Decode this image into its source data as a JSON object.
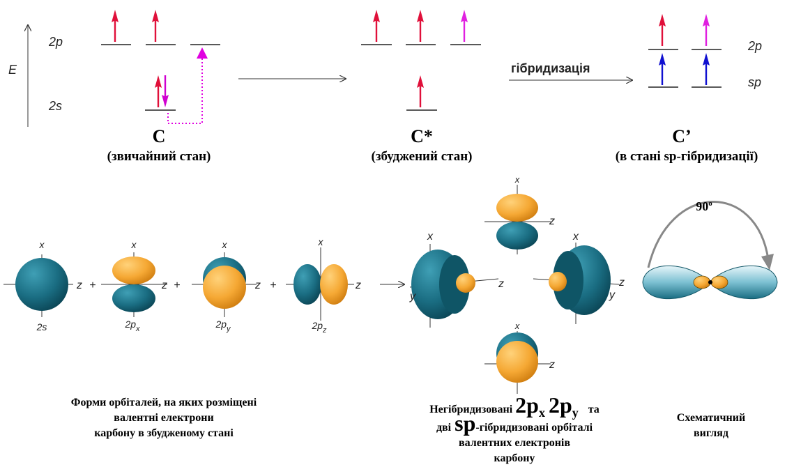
{
  "energy_diagram": {
    "axis_label": "E",
    "level_labels": [
      "2p",
      "2s"
    ],
    "states": [
      {
        "symbol": "C",
        "caption": "(звичайний стан)"
      },
      {
        "symbol": "C*",
        "caption": "(збуджений стан)"
      },
      {
        "symbol": "C’",
        "caption": "(в стані sp-гібридизації)"
      }
    ],
    "arrow_label": "гібридизація",
    "hybrid_labels": [
      "2p",
      "sp"
    ]
  },
  "orbitals": {
    "items": [
      {
        "axes": [
          "x",
          "z"
        ],
        "name": "2s"
      },
      {
        "axes": [
          "x",
          "z"
        ],
        "name": "2p",
        "sub": "x"
      },
      {
        "axes": [
          "x",
          "z"
        ],
        "name": "2p",
        "sub": "y"
      },
      {
        "axes": [
          "x",
          "z"
        ],
        "name": "2p",
        "sub": "z"
      }
    ],
    "operators": [
      "+",
      "+",
      "+"
    ]
  },
  "hybrid_view": {
    "left": [
      "x",
      "z",
      "y"
    ],
    "top": [
      "x",
      "z"
    ],
    "right": [
      "x",
      "z",
      "y"
    ],
    "bottom": [
      "x",
      "z"
    ]
  },
  "schematic": {
    "angle": "90",
    "angle_sup": "o"
  },
  "captions": {
    "shapes": [
      "Форми орбіталей, на яких розміщені",
      "валентні електрони",
      "карбону в збудженому стані"
    ],
    "hybrid": {
      "prefix": "Негібридизовані",
      "p1": "2p",
      "p1_sub": "x",
      "p2": "2p",
      "p2_sub": "y",
      "and": "та",
      "line2_prefix": "дві",
      "sp": "sp",
      "line2_rest": "-гібридизовані орбіталі",
      "line3": "валентних електронів",
      "line4": "карбону"
    },
    "schematic": [
      "Схематичний",
      "вигляд"
    ]
  }
}
